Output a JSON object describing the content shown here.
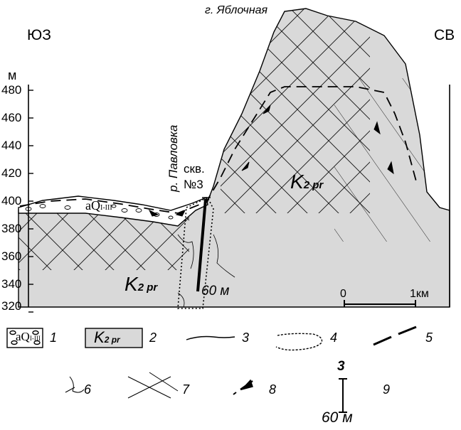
{
  "header": {
    "left_direction": "ЮЗ",
    "right_direction": "СВ",
    "peak_label": "г. Яблочная"
  },
  "axis": {
    "unit": "м",
    "ticks": [
      "480",
      "460",
      "440",
      "420",
      "400",
      "380",
      "360",
      "340",
      "320"
    ]
  },
  "section_labels": {
    "river": "р. Павловка",
    "well": "скв.",
    "well_number": "№3",
    "alluvium": "aQ",
    "alluvium_sub": "I-III",
    "formation_main": "K",
    "formation_sub": "2 pr",
    "formation_lower": "K",
    "formation_lower_sub": "2 pr",
    "well_depth": "60 м"
  },
  "scale_bar": {
    "start": "0",
    "end": "1км"
  },
  "legend": {
    "items": [
      {
        "num": "1",
        "label_main": "aQ",
        "label_sub": "I-III"
      },
      {
        "num": "2",
        "label_main": "K",
        "label_sub": "2 pr"
      },
      {
        "num": "3"
      },
      {
        "num": "4"
      },
      {
        "num": "5"
      },
      {
        "num": "6"
      },
      {
        "num": "7"
      },
      {
        "num": "8"
      },
      {
        "num": "9",
        "top": "3",
        "bottom": "60 м"
      }
    ]
  }
}
